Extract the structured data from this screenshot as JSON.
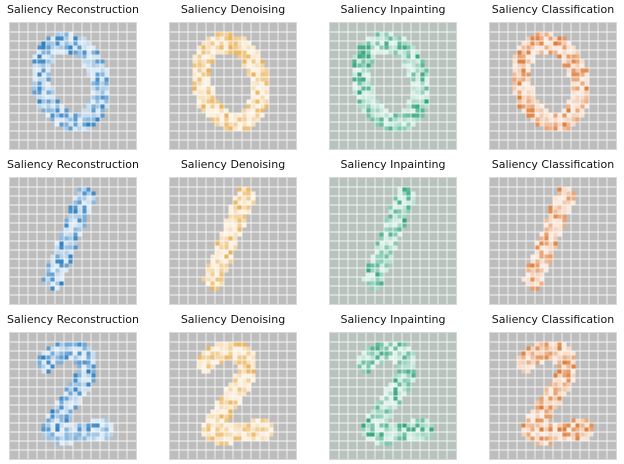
{
  "colors": {
    "background_gray": "#bdbdbd",
    "inpainting_background": "#b7c3bc",
    "grid_lines": "#ffffff",
    "reconstruction": "#2f7fc1",
    "denoising": "#e5a33a",
    "inpainting": "#2fa37a",
    "classification": "#d86414"
  },
  "task_titles": [
    "Saliency Reconstruction",
    "Saliency Denoising",
    "Saliency Inpainting",
    "Saliency Classification"
  ],
  "digits": [
    {
      "name": "zero"
    },
    {
      "name": "one"
    },
    {
      "name": "two"
    }
  ]
}
